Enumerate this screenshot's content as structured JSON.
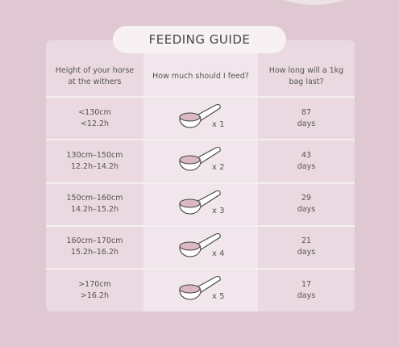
{
  "title": "FEEDING GUIDE",
  "table": {
    "headers": [
      [
        "Height of your horse",
        "at the withers"
      ],
      [
        "How much should I feed?"
      ],
      [
        "How long will a 1kg",
        "bag last?"
      ]
    ],
    "rows": [
      {
        "height": [
          "<130cm",
          "<12.2h"
        ],
        "scoops": "x 1",
        "days": [
          "87",
          "days"
        ]
      },
      {
        "height": [
          "130cm–150cm",
          "12.2h–14.2h"
        ],
        "scoops": "x 2",
        "days": [
          "43",
          "days"
        ]
      },
      {
        "height": [
          "150cm–160cm",
          "14.2h–15.2h"
        ],
        "scoops": "x 3",
        "days": [
          "29",
          "days"
        ]
      },
      {
        "height": [
          "160cm–170cm",
          "15.2h–16.2h"
        ],
        "scoops": "x 4",
        "days": [
          "21",
          "days"
        ]
      },
      {
        "height": [
          ">170cm",
          ">16.2h"
        ],
        "scoops": "x 5",
        "days": [
          "17",
          "days"
        ]
      }
    ]
  }
}
